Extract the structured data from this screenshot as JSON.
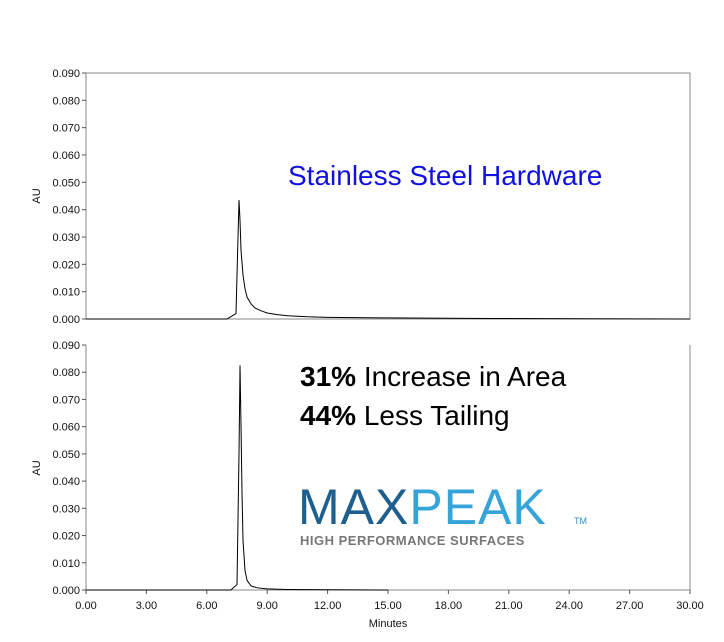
{
  "chart_data": [
    {
      "type": "line",
      "title": "",
      "xlabel": "",
      "ylabel": "AU",
      "xlim": [
        0,
        30
      ],
      "ylim": [
        0,
        0.09
      ],
      "y_ticks": [
        "0.000",
        "0.010",
        "0.020",
        "0.030",
        "0.040",
        "0.050",
        "0.060",
        "0.070",
        "0.080",
        "0.090"
      ],
      "annotation": "Stainless Steel Hardware",
      "annotation_color": "#1010e0",
      "series": [
        {
          "color": "#000000",
          "x": [
            0,
            7.0,
            7.45,
            7.55,
            7.6,
            7.65,
            7.7,
            7.8,
            7.9,
            8.0,
            8.2,
            8.4,
            8.7,
            9.0,
            9.5,
            10.0,
            11.0,
            12.0,
            15.0,
            20.0,
            25.0,
            30.0
          ],
          "y": [
            0.0,
            0.0,
            0.002,
            0.03,
            0.0435,
            0.036,
            0.025,
            0.016,
            0.011,
            0.008,
            0.0055,
            0.004,
            0.003,
            0.0022,
            0.0016,
            0.0012,
            0.0008,
            0.0006,
            0.0004,
            0.0002,
            0.0001,
            0.0
          ]
        }
      ]
    },
    {
      "type": "line",
      "title": "",
      "xlabel": "Minutes",
      "ylabel": "AU",
      "xlim": [
        0,
        30
      ],
      "ylim": [
        0,
        0.09
      ],
      "x_ticks": [
        "0.00",
        "3.00",
        "6.00",
        "9.00",
        "12.00",
        "15.00",
        "18.00",
        "21.00",
        "24.00",
        "27.00",
        "30.00"
      ],
      "y_ticks": [
        "0.000",
        "0.010",
        "0.020",
        "0.030",
        "0.040",
        "0.050",
        "0.060",
        "0.070",
        "0.080",
        "0.090"
      ],
      "annotations": [
        {
          "bold": "31%",
          "text": " Increase in Area"
        },
        {
          "bold": "44%",
          "text": " Less Tailing"
        }
      ],
      "series": [
        {
          "color": "#000000",
          "x": [
            0,
            7.2,
            7.5,
            7.6,
            7.65,
            7.7,
            7.75,
            7.8,
            7.9,
            8.0,
            8.2,
            8.5,
            9.0,
            10.0,
            15.0
          ],
          "y": [
            0.0,
            0.0,
            0.002,
            0.05,
            0.0825,
            0.06,
            0.035,
            0.018,
            0.007,
            0.0035,
            0.0015,
            0.0008,
            0.0004,
            0.0002,
            0.0
          ]
        }
      ]
    }
  ],
  "logo": {
    "name_a": "MAX",
    "name_b": "PEAK",
    "tm": "TM",
    "tagline": "HIGH PERFORMANCE SURFACES",
    "color_a": "#1e5f8e",
    "color_b": "#35a4d8"
  }
}
